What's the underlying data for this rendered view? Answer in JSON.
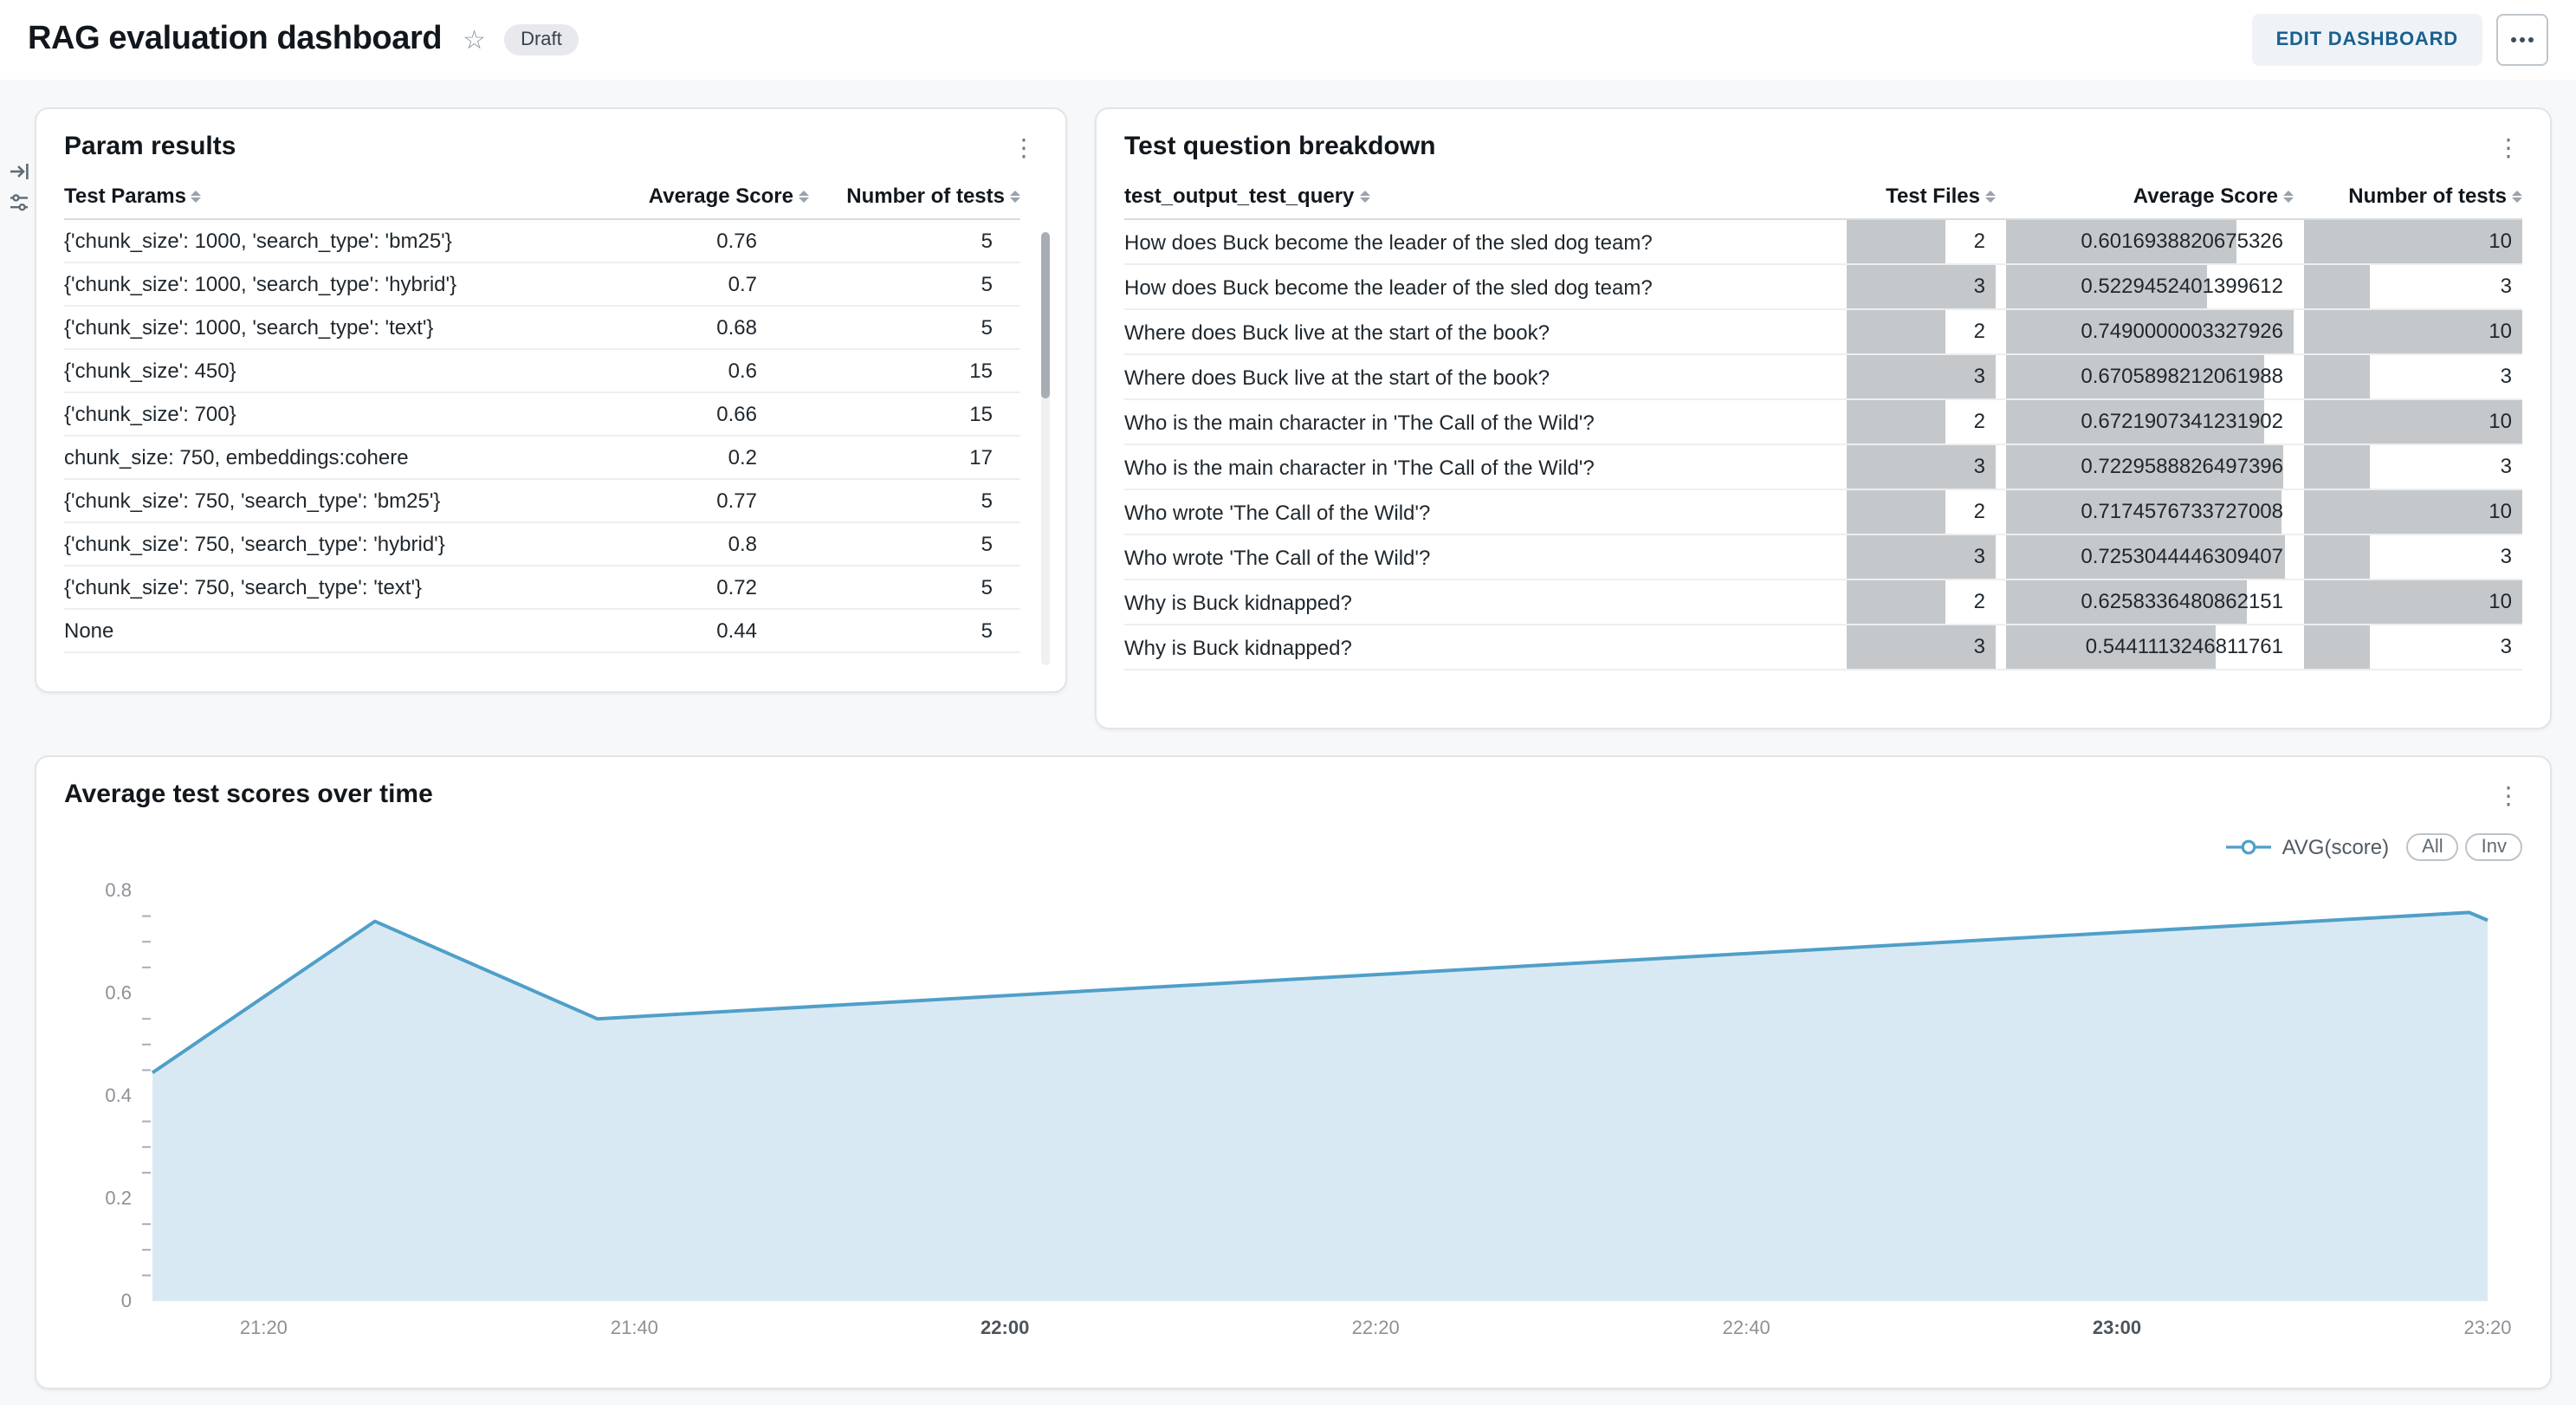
{
  "header": {
    "title": "RAG evaluation dashboard",
    "status_badge": "Draft",
    "edit_button": "EDIT DASHBOARD"
  },
  "icons": {
    "star": "☆",
    "kebab": "⋮"
  },
  "param_results": {
    "title": "Param results",
    "columns": [
      "Test Params",
      "Average Score",
      "Number of tests"
    ],
    "rows": [
      {
        "params": "{'chunk_size': 1000, 'search_type': 'bm25'}",
        "avg": "0.76",
        "n": "5"
      },
      {
        "params": "{'chunk_size': 1000, 'search_type': 'hybrid'}",
        "avg": "0.7",
        "n": "5"
      },
      {
        "params": "{'chunk_size': 1000, 'search_type': 'text'}",
        "avg": "0.68",
        "n": "5"
      },
      {
        "params": "{'chunk_size': 450}",
        "avg": "0.6",
        "n": "15"
      },
      {
        "params": "{'chunk_size': 700}",
        "avg": "0.66",
        "n": "15"
      },
      {
        "params": "chunk_size: 750, embeddings:cohere",
        "avg": "0.2",
        "n": "17"
      },
      {
        "params": "{'chunk_size': 750, 'search_type': 'bm25'}",
        "avg": "0.77",
        "n": "5"
      },
      {
        "params": "{'chunk_size': 750, 'search_type': 'hybrid'}",
        "avg": "0.8",
        "n": "5"
      },
      {
        "params": "{'chunk_size': 750, 'search_type': 'text'}",
        "avg": "0.72",
        "n": "5"
      },
      {
        "params": "None",
        "avg": "0.44",
        "n": "5"
      }
    ]
  },
  "question_breakdown": {
    "title": "Test question breakdown",
    "columns": [
      "test_output_test_query",
      "Test Files",
      "Average Score",
      "Number of tests"
    ],
    "bar_max": {
      "files": 3,
      "avg": 0.7490000003327926,
      "n": 10
    },
    "rows": [
      {
        "query": "How does Buck become the leader of the sled dog team?",
        "files": 2,
        "avg": "0.6016938820675326",
        "n": 10
      },
      {
        "query": "How does Buck become the leader of the sled dog team?",
        "files": 3,
        "avg": "0.5229452401399612",
        "n": 3
      },
      {
        "query": "Where does Buck live at the start of the book?",
        "files": 2,
        "avg": "0.7490000003327926",
        "n": 10
      },
      {
        "query": "Where does Buck live at the start of the book?",
        "files": 3,
        "avg": "0.6705898212061988",
        "n": 3
      },
      {
        "query": "Who is the main character in 'The Call of the Wild'?",
        "files": 2,
        "avg": "0.6721907341231902",
        "n": 10
      },
      {
        "query": "Who is the main character in 'The Call of the Wild'?",
        "files": 3,
        "avg": "0.7229588826497396",
        "n": 3
      },
      {
        "query": "Who wrote 'The Call of the Wild'?",
        "files": 2,
        "avg": "0.7174576733727008",
        "n": 10
      },
      {
        "query": "Who wrote 'The Call of the Wild'?",
        "files": 3,
        "avg": "0.7253044446309407",
        "n": 3
      },
      {
        "query": "Why is Buck kidnapped?",
        "files": 2,
        "avg": "0.6258336480862151",
        "n": 10
      },
      {
        "query": "Why is Buck kidnapped?",
        "files": 3,
        "avg": "0.5441113246811761",
        "n": 3
      }
    ]
  },
  "chart_data": {
    "type": "area",
    "title": "Average test scores over time",
    "legend": {
      "label": "AVG(score)"
    },
    "controls": [
      "All",
      "Inv"
    ],
    "series": [
      {
        "name": "AVG(score)",
        "points": [
          [
            14,
            0.445
          ],
          [
            26,
            0.74
          ],
          [
            38,
            0.55
          ],
          [
            139,
            0.757
          ],
          [
            140,
            0.742
          ]
        ]
      }
    ],
    "x_domain": [
      14,
      140
    ],
    "x_ticks": [
      {
        "x": 20,
        "label": "21:20",
        "bold": false
      },
      {
        "x": 40,
        "label": "21:40",
        "bold": false
      },
      {
        "x": 60,
        "label": "22:00",
        "bold": true
      },
      {
        "x": 80,
        "label": "22:20",
        "bold": false
      },
      {
        "x": 100,
        "label": "22:40",
        "bold": false
      },
      {
        "x": 120,
        "label": "23:00",
        "bold": true
      },
      {
        "x": 140,
        "label": "23:20",
        "bold": false
      }
    ],
    "ylim": [
      0,
      0.8
    ],
    "y_ticks": [
      {
        "v": 0,
        "label": "0"
      },
      {
        "v": 0.2,
        "label": "0.2"
      },
      {
        "v": 0.4,
        "label": "0.4"
      },
      {
        "v": 0.6,
        "label": "0.6"
      },
      {
        "v": 0.8,
        "label": "0.8"
      }
    ],
    "y_minor_step": 0.05,
    "colors": {
      "line": "#4f9fc9",
      "area": "#d9e9f3"
    }
  }
}
